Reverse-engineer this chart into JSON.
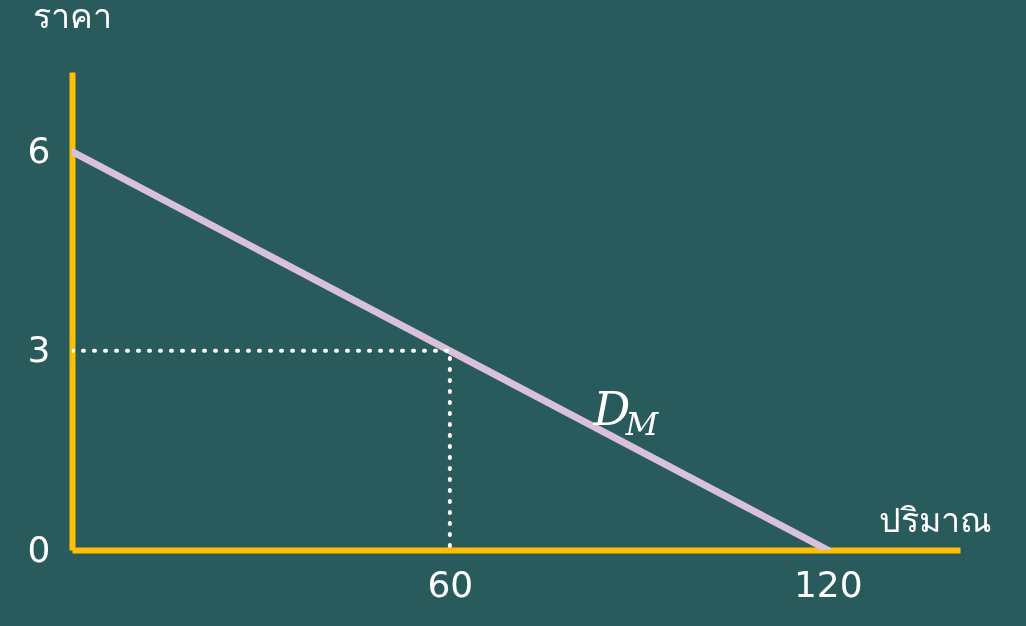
{
  "chart_data": {
    "type": "line",
    "xlabel": "ปริมาณ",
    "ylabel": "ราคา",
    "xlim": [
      0,
      141
    ],
    "ylim": [
      0,
      7.2
    ],
    "xticks": [
      60,
      120
    ],
    "yticks": [
      0,
      3,
      6
    ],
    "grid": false,
    "marker": "none",
    "series": [
      {
        "name": "D$_{M}$",
        "color": "#d9c1dc",
        "x": [
          0,
          120
        ],
        "values": [
          6,
          0
        ],
        "line_style": "solid"
      },
      {
        "color": "#ffffff",
        "x": [
          0,
          60,
          60
        ],
        "values": [
          3,
          3,
          0
        ],
        "line_style": "dotted"
      }
    ]
  }
}
